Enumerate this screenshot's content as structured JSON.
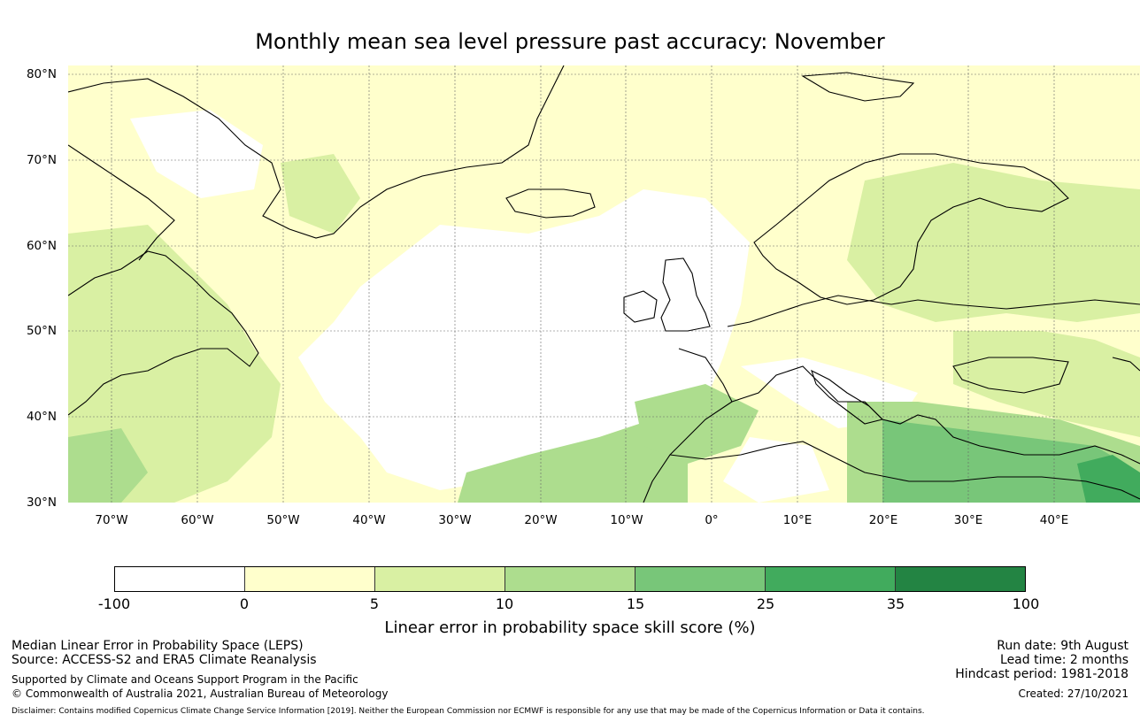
{
  "title": "Monthly mean sea level pressure past accuracy: November",
  "map": {
    "lat_labels": [
      "80°N",
      "70°N",
      "60°N",
      "50°N",
      "40°N",
      "30°N"
    ],
    "lon_labels": [
      "70°W",
      "60°W",
      "50°W",
      "40°W",
      "30°W",
      "20°W",
      "10°W",
      "0°",
      "10°E",
      "20°E",
      "30°E",
      "40°E"
    ],
    "lat_range": [
      30,
      81
    ],
    "lon_range": [
      -75,
      50
    ],
    "skill_regions": [
      {
        "name": "North Atlantic central",
        "class": "-100 to 0"
      },
      {
        "name": "Greenland & Arctic Ocean",
        "class": "0 to 5"
      },
      {
        "name": "Labrador & Canadian Maritimes",
        "class": "5 to 10"
      },
      {
        "name": "Scandinavia & Eastern Europe",
        "class": "5 to 10"
      },
      {
        "name": "Eastern Mediterranean",
        "class": "15 to 25"
      },
      {
        "name": "Subtropical East Atlantic",
        "class": "10 to 15"
      }
    ]
  },
  "colorbar": {
    "ticks": [
      "-100",
      "0",
      "5",
      "10",
      "15",
      "25",
      "35",
      "100"
    ],
    "colors": [
      "#ffffff",
      "#ffffcc",
      "#d9f0a3",
      "#addd8e",
      "#78c679",
      "#41ab5d",
      "#238443"
    ],
    "label": "Linear error in probability space skill score (%)"
  },
  "footer": {
    "left_line1": "Median Linear Error in Probability Space (LEPS)",
    "left_line2": "Source: ACCESS-S2 and ERA5 Climate Reanalysis",
    "left_line3": "Supported by Climate and Oceans Support Program in the Pacific",
    "left_line4": "© Commonwealth of Australia 2021, Australian Bureau of Meteorology",
    "right_line1": "Run date: 9th August",
    "right_line2": "Lead time: 2 months",
    "right_line3": "Hindcast period: 1981-2018",
    "right_line4": "Created: 27/10/2021",
    "disclaimer": "Disclaimer: Contains modified Copernicus Climate Change Service Information [2019]. Neither the European Commission nor ECMWF is responsible for any use that may be made of the Copernicus Information or Data it contains."
  }
}
